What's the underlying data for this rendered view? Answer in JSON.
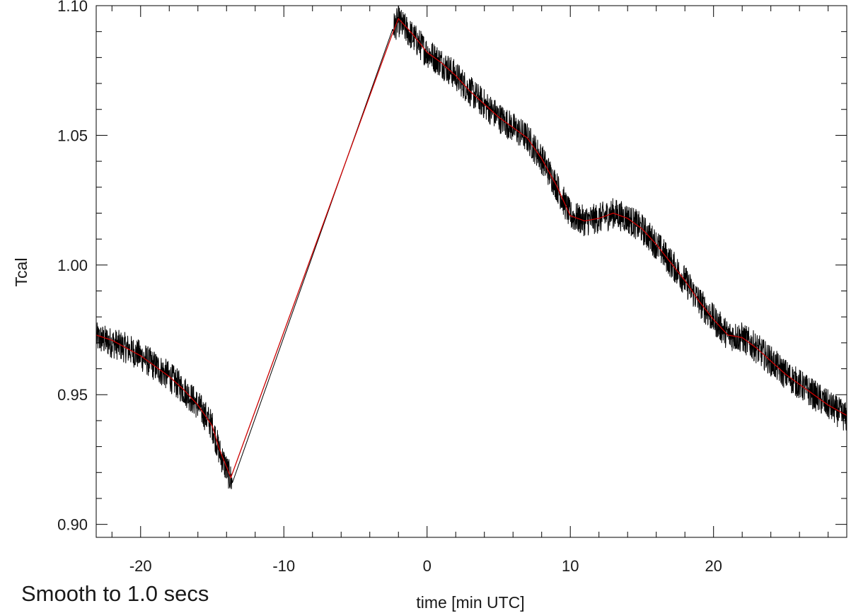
{
  "chart_data": {
    "type": "line",
    "title": "",
    "xlabel": "time [min UTC]",
    "ylabel": "Tcal",
    "xlim": [
      -23.1,
      29.3
    ],
    "ylim": [
      0.895,
      1.1
    ],
    "x_ticks": [
      -20,
      -10,
      0,
      10,
      20
    ],
    "x_tick_labels": [
      "-20",
      "-10",
      "0",
      "10",
      "20"
    ],
    "x_minor_step": 2,
    "y_ticks": [
      0.9,
      0.95,
      1.0,
      1.05,
      1.1
    ],
    "y_tick_labels": [
      "0.90",
      "0.95",
      "1.00",
      "1.05",
      "1.10"
    ],
    "y_minor_step": 0.01,
    "grid": false,
    "legend": null,
    "annotation": "Smooth to  1.0 secs",
    "series": [
      {
        "role": "raw",
        "color": "#000000",
        "noise_amplitude": 0.006,
        "points": [
          [
            -23.1,
            0.972
          ],
          [
            -22.0,
            0.97
          ],
          [
            -21.0,
            0.968
          ],
          [
            -20.0,
            0.965
          ],
          [
            -19.0,
            0.961
          ],
          [
            -18.0,
            0.957
          ],
          [
            -17.0,
            0.952
          ],
          [
            -16.0,
            0.946
          ],
          [
            -15.0,
            0.938
          ],
          [
            -14.5,
            0.928
          ],
          [
            -13.6,
            0.916
          ],
          [
            -2.4,
            1.091
          ],
          [
            -2.0,
            1.094
          ],
          [
            -1.0,
            1.088
          ],
          [
            0.0,
            1.082
          ],
          [
            1.0,
            1.078
          ],
          [
            2.0,
            1.073
          ],
          [
            3.0,
            1.067
          ],
          [
            4.0,
            1.062
          ],
          [
            5.0,
            1.057
          ],
          [
            6.0,
            1.053
          ],
          [
            7.0,
            1.049
          ],
          [
            8.0,
            1.041
          ],
          [
            9.0,
            1.031
          ],
          [
            10.0,
            1.019
          ],
          [
            11.0,
            1.017
          ],
          [
            12.0,
            1.018
          ],
          [
            13.0,
            1.02
          ],
          [
            14.0,
            1.018
          ],
          [
            15.0,
            1.014
          ],
          [
            16.0,
            1.008
          ],
          [
            17.0,
            1.001
          ],
          [
            18.0,
            0.994
          ],
          [
            19.0,
            0.986
          ],
          [
            20.0,
            0.979
          ],
          [
            21.0,
            0.973
          ],
          [
            22.0,
            0.972
          ],
          [
            23.0,
            0.968
          ],
          [
            24.0,
            0.963
          ],
          [
            25.0,
            0.958
          ],
          [
            26.0,
            0.954
          ],
          [
            27.0,
            0.95
          ],
          [
            28.0,
            0.946
          ],
          [
            29.3,
            0.941
          ]
        ]
      },
      {
        "role": "smoothed",
        "color": "#cc0000",
        "points": [
          [
            -23.1,
            0.973
          ],
          [
            -22.0,
            0.971
          ],
          [
            -21.0,
            0.968
          ],
          [
            -20.0,
            0.965
          ],
          [
            -19.0,
            0.961
          ],
          [
            -18.0,
            0.957
          ],
          [
            -17.0,
            0.952
          ],
          [
            -16.0,
            0.946
          ],
          [
            -15.0,
            0.938
          ],
          [
            -14.5,
            0.929
          ],
          [
            -13.7,
            0.918
          ],
          [
            -2.5,
            1.088
          ],
          [
            -2.0,
            1.095
          ],
          [
            -1.0,
            1.089
          ],
          [
            0.0,
            1.082
          ],
          [
            1.0,
            1.078
          ],
          [
            2.0,
            1.073
          ],
          [
            3.0,
            1.067
          ],
          [
            4.0,
            1.062
          ],
          [
            5.0,
            1.057
          ],
          [
            6.0,
            1.053
          ],
          [
            7.0,
            1.049
          ],
          [
            8.0,
            1.041
          ],
          [
            9.0,
            1.031
          ],
          [
            10.0,
            1.019
          ],
          [
            11.0,
            1.017
          ],
          [
            12.0,
            1.018
          ],
          [
            13.0,
            1.02
          ],
          [
            14.0,
            1.018
          ],
          [
            15.0,
            1.014
          ],
          [
            16.0,
            1.008
          ],
          [
            17.0,
            1.001
          ],
          [
            18.0,
            0.994
          ],
          [
            19.0,
            0.986
          ],
          [
            20.0,
            0.979
          ],
          [
            21.0,
            0.973
          ],
          [
            22.0,
            0.972
          ],
          [
            23.0,
            0.968
          ],
          [
            24.0,
            0.963
          ],
          [
            25.0,
            0.958
          ],
          [
            26.0,
            0.954
          ],
          [
            27.0,
            0.95
          ],
          [
            28.0,
            0.946
          ],
          [
            29.3,
            0.942
          ]
        ]
      }
    ]
  }
}
